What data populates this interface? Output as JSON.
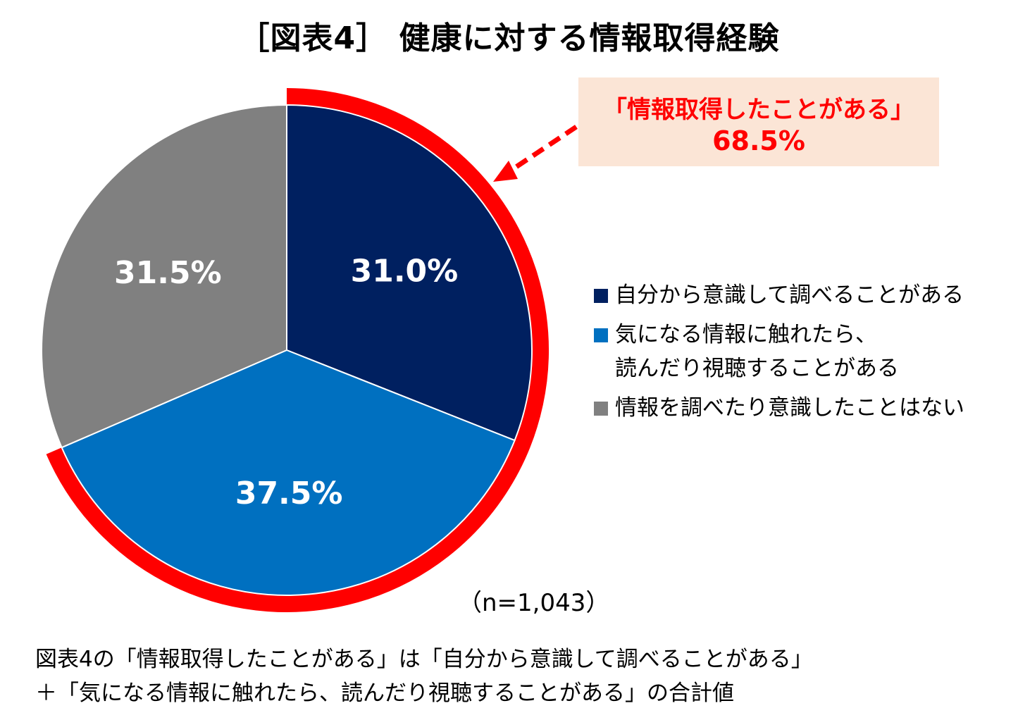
{
  "title": "［図表4］ 健康に対する情報取得経験",
  "callout": {
    "line1": "「情報取得したことがある」",
    "line2": "68.5%",
    "text_color": "#ff0000",
    "bg_color": "#fbe5d6"
  },
  "sample_size": "（n=1,043）",
  "footnote": "図表4の「情報取得したことがある」は「自分から意識して調べることがある」\n＋「気になる情報に触れたら、読んだり視聴することがある」の合計値",
  "chart_data": {
    "type": "pie",
    "title": "［図表4］ 健康に対する情報取得経験",
    "start_angle_deg": 0,
    "direction": "clockwise",
    "slices": [
      {
        "label": "自分から意識して調べることがある",
        "value": 31.0,
        "display": "31.0%",
        "color": "#002060"
      },
      {
        "label": "気になる情報に触れたら、\n読んだり視聴することがある",
        "value": 37.5,
        "display": "37.5%",
        "color": "#0070c0"
      },
      {
        "label": "情報を調べたり意識したことはない",
        "value": 31.5,
        "display": "31.5%",
        "color": "#808080"
      }
    ],
    "highlight": {
      "label": "情報取得したことがある",
      "value": 68.5,
      "display": "68.5%",
      "covers": [
        0,
        1
      ],
      "color": "#ff0000"
    },
    "legend_position": "right"
  }
}
